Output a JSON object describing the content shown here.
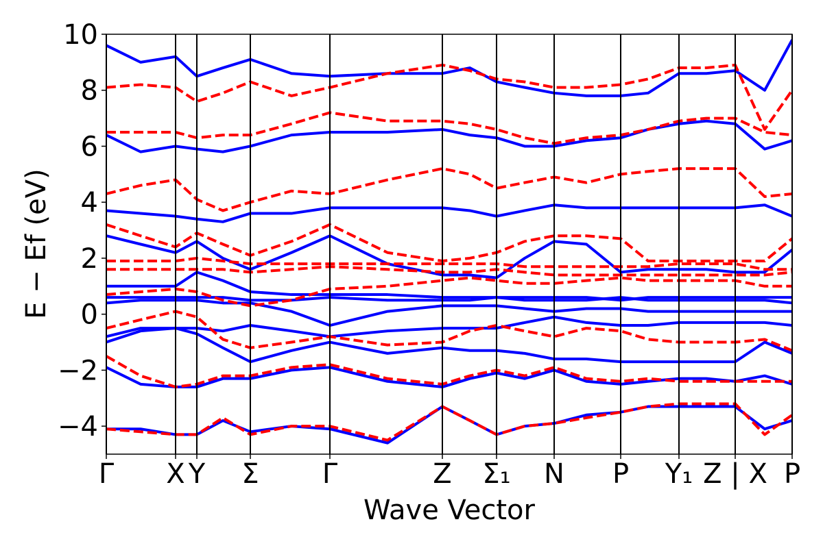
{
  "chart_data": {
    "type": "line",
    "xlabel": "Wave Vector",
    "ylabel": "E − Ef (eV)",
    "xlim": [
      0,
      10
    ],
    "ylim": [
      -5,
      10
    ],
    "yticks": [
      {
        "value": -4,
        "label": "−4"
      },
      {
        "value": -2,
        "label": "−2"
      },
      0,
      2,
      4,
      6,
      8,
      10
    ],
    "xticks": [
      {
        "value": 0,
        "label": "Γ"
      },
      {
        "value": 1.01,
        "label": "X"
      },
      {
        "value": 1.32,
        "label": "Y"
      },
      {
        "value": 2.1,
        "label": "Σ"
      },
      {
        "value": 3.26,
        "label": "Γ"
      },
      {
        "value": 4.9,
        "label": "Z"
      },
      {
        "value": 5.69,
        "label": "Σ₁"
      },
      {
        "value": 6.53,
        "label": "N"
      },
      {
        "value": 7.5,
        "label": "P"
      },
      {
        "value": 8.35,
        "label": "Y₁"
      },
      {
        "value": 9.17,
        "label": "Z | X"
      },
      {
        "value": 10,
        "label": "P"
      }
    ],
    "grid": true,
    "x": [
      0,
      0.5,
      1.01,
      1.32,
      1.7,
      2.1,
      2.7,
      3.26,
      4.1,
      4.9,
      5.3,
      5.69,
      6.1,
      6.53,
      7.0,
      7.5,
      7.9,
      8.35,
      8.75,
      9.17,
      9.6,
      10.0
    ],
    "series": [
      {
        "color": "#0000ff",
        "dashed": false,
        "values": [
          -4.1,
          -4.1,
          -4.3,
          -4.3,
          -3.8,
          -4.2,
          -4.0,
          -4.1,
          -4.6,
          -3.3,
          -3.8,
          -4.3,
          -4.0,
          -3.9,
          -3.6,
          -3.5,
          -3.3,
          -3.3,
          -3.3,
          -3.3,
          -4.1,
          -3.8
        ]
      },
      {
        "color": "#0000ff",
        "dashed": false,
        "values": [
          -1.9,
          -2.5,
          -2.6,
          -2.6,
          -2.3,
          -2.3,
          -2.0,
          -1.9,
          -2.4,
          -2.6,
          -2.3,
          -2.1,
          -2.3,
          -2.0,
          -2.4,
          -2.5,
          -2.4,
          -2.3,
          -2.3,
          -2.4,
          -2.2,
          -2.5
        ]
      },
      {
        "color": "#0000ff",
        "dashed": false,
        "values": [
          -1.0,
          -0.6,
          -0.5,
          -0.7,
          -1.2,
          -1.7,
          -1.3,
          -1.0,
          -1.4,
          -1.2,
          -1.3,
          -1.3,
          -1.4,
          -1.6,
          -1.6,
          -1.7,
          -1.7,
          -1.7,
          -1.7,
          -1.7,
          -1.0,
          -1.4
        ]
      },
      {
        "color": "#0000ff",
        "dashed": false,
        "values": [
          -0.8,
          -0.5,
          -0.5,
          -0.5,
          -0.6,
          -0.4,
          -0.6,
          -0.8,
          -0.6,
          -0.5,
          -0.5,
          -0.5,
          -0.3,
          -0.1,
          -0.3,
          -0.4,
          -0.4,
          -0.3,
          -0.3,
          -0.3,
          -0.3,
          -0.4
        ]
      },
      {
        "color": "#0000ff",
        "dashed": false,
        "values": [
          0.4,
          0.5,
          0.5,
          0.5,
          0.4,
          0.4,
          0.1,
          -0.4,
          0.1,
          0.3,
          0.3,
          0.3,
          0.2,
          0.1,
          0.2,
          0.2,
          0.1,
          0.1,
          0.1,
          0.1,
          0.1,
          0.1
        ]
      },
      {
        "color": "#0000ff",
        "dashed": false,
        "values": [
          0.6,
          0.6,
          0.6,
          0.6,
          0.6,
          0.5,
          0.5,
          0.6,
          0.5,
          0.5,
          0.5,
          0.6,
          0.5,
          0.5,
          0.5,
          0.6,
          0.5,
          0.5,
          0.5,
          0.5,
          0.5,
          0.4
        ]
      },
      {
        "color": "#0000ff",
        "dashed": false,
        "values": [
          1.0,
          1.0,
          1.0,
          1.5,
          1.2,
          0.8,
          0.7,
          0.7,
          0.7,
          0.6,
          0.6,
          0.6,
          0.6,
          0.6,
          0.6,
          0.5,
          0.6,
          0.6,
          0.6,
          0.6,
          0.6,
          0.6
        ]
      },
      {
        "color": "#0000ff",
        "dashed": false,
        "values": [
          2.8,
          2.5,
          2.2,
          2.6,
          2.0,
          1.6,
          2.2,
          2.8,
          1.8,
          1.4,
          1.4,
          1.3,
          2.0,
          2.6,
          2.5,
          1.5,
          1.6,
          1.6,
          1.6,
          1.5,
          1.5,
          2.3
        ]
      },
      {
        "color": "#0000ff",
        "dashed": false,
        "values": [
          3.7,
          3.6,
          3.5,
          3.4,
          3.3,
          3.6,
          3.6,
          3.8,
          3.8,
          3.8,
          3.7,
          3.5,
          3.7,
          3.9,
          3.8,
          3.8,
          3.8,
          3.8,
          3.8,
          3.8,
          3.9,
          3.5
        ]
      },
      {
        "color": "#0000ff",
        "dashed": false,
        "values": [
          6.4,
          5.8,
          6.0,
          5.9,
          5.8,
          6.0,
          6.4,
          6.5,
          6.5,
          6.6,
          6.4,
          6.3,
          6.0,
          6.0,
          6.2,
          6.3,
          6.6,
          6.8,
          6.9,
          6.8,
          5.9,
          6.2
        ]
      },
      {
        "color": "#0000ff",
        "dashed": false,
        "values": [
          9.6,
          9.0,
          9.2,
          8.5,
          8.8,
          9.1,
          8.6,
          8.5,
          8.6,
          8.6,
          8.8,
          8.3,
          8.1,
          7.9,
          7.8,
          7.8,
          7.9,
          8.6,
          8.6,
          8.7,
          8.0,
          9.8
        ]
      },
      {
        "color": "#ff0000",
        "dashed": true,
        "values": [
          -4.1,
          -4.2,
          -4.3,
          -4.3,
          -3.7,
          -4.3,
          -4.0,
          -4.0,
          -4.5,
          -3.3,
          -3.8,
          -4.3,
          -4.0,
          -3.9,
          -3.7,
          -3.5,
          -3.3,
          -3.2,
          -3.2,
          -3.2,
          -4.3,
          -3.6
        ]
      },
      {
        "color": "#ff0000",
        "dashed": true,
        "values": [
          -1.5,
          -2.2,
          -2.6,
          -2.5,
          -2.2,
          -2.2,
          -1.9,
          -1.8,
          -2.3,
          -2.5,
          -2.2,
          -2.0,
          -2.2,
          -1.9,
          -2.3,
          -2.4,
          -2.3,
          -2.4,
          -2.4,
          -2.4,
          -2.4,
          -2.4
        ]
      },
      {
        "color": "#ff0000",
        "dashed": true,
        "values": [
          -0.5,
          -0.2,
          0.1,
          -0.1,
          -0.9,
          -1.2,
          -1.0,
          -0.8,
          -1.1,
          -1.0,
          -0.6,
          -0.4,
          -0.6,
          -0.8,
          -0.5,
          -0.6,
          -0.9,
          -1.0,
          -1.0,
          -1.0,
          -0.9,
          -1.3
        ]
      },
      {
        "color": "#ff0000",
        "dashed": true,
        "values": [
          0.7,
          0.8,
          0.9,
          0.8,
          0.5,
          0.3,
          0.5,
          0.9,
          1.0,
          1.2,
          1.3,
          1.2,
          1.1,
          1.1,
          1.2,
          1.3,
          1.2,
          1.2,
          1.2,
          1.2,
          1.0,
          1.0
        ]
      },
      {
        "color": "#ff0000",
        "dashed": true,
        "values": [
          1.6,
          1.6,
          1.6,
          1.6,
          1.6,
          1.5,
          1.6,
          1.7,
          1.6,
          1.5,
          1.5,
          1.6,
          1.5,
          1.4,
          1.4,
          1.4,
          1.4,
          1.4,
          1.4,
          1.4,
          1.4,
          1.5
        ]
      },
      {
        "color": "#ff0000",
        "dashed": true,
        "values": [
          1.9,
          1.9,
          1.9,
          2.0,
          1.9,
          1.8,
          1.8,
          1.8,
          1.8,
          1.8,
          1.8,
          1.8,
          1.7,
          1.7,
          1.7,
          1.7,
          1.7,
          1.8,
          1.8,
          1.8,
          1.6,
          1.6
        ]
      },
      {
        "color": "#ff0000",
        "dashed": true,
        "values": [
          3.2,
          2.8,
          2.4,
          2.9,
          2.5,
          2.1,
          2.6,
          3.2,
          2.2,
          1.9,
          2.0,
          2.2,
          2.6,
          2.8,
          2.8,
          2.7,
          1.9,
          1.9,
          1.9,
          1.9,
          1.9,
          2.7
        ]
      },
      {
        "color": "#ff0000",
        "dashed": true,
        "values": [
          4.3,
          4.6,
          4.8,
          4.1,
          3.7,
          4.0,
          4.4,
          4.3,
          4.8,
          5.2,
          5.0,
          4.5,
          4.7,
          4.9,
          4.7,
          5.0,
          5.1,
          5.2,
          5.2,
          5.2,
          4.2,
          4.3
        ]
      },
      {
        "color": "#ff0000",
        "dashed": true,
        "values": [
          6.5,
          6.5,
          6.5,
          6.3,
          6.4,
          6.4,
          6.8,
          7.2,
          6.9,
          6.9,
          6.8,
          6.6,
          6.3,
          6.1,
          6.3,
          6.4,
          6.6,
          6.9,
          7.0,
          7.0,
          6.5,
          6.4
        ]
      },
      {
        "color": "#ff0000",
        "dashed": true,
        "values": [
          8.1,
          8.2,
          8.1,
          7.6,
          7.9,
          8.3,
          7.8,
          8.1,
          8.6,
          8.9,
          8.7,
          8.4,
          8.3,
          8.1,
          8.1,
          8.2,
          8.4,
          8.8,
          8.8,
          8.9,
          6.6,
          8.0
        ]
      }
    ]
  }
}
